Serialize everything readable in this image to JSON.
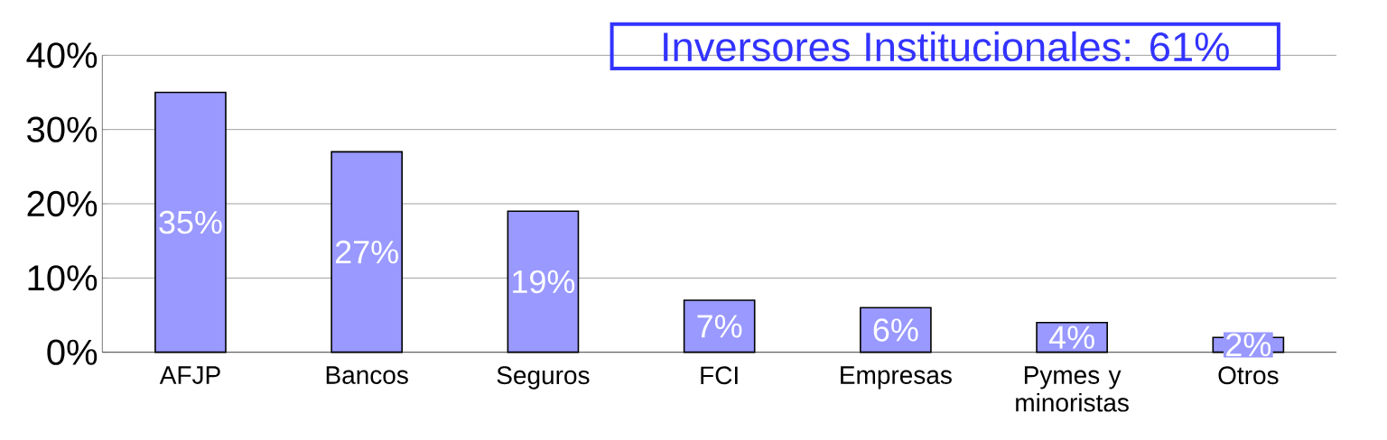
{
  "chart_data": {
    "type": "bar",
    "title": "Inversores Institucionales: 61%",
    "categories": [
      "AFJP",
      "Bancos",
      "Seguros",
      "FCI",
      "Empresas",
      "Pymes y minoristas",
      "Otros"
    ],
    "values": [
      35,
      27,
      19,
      7,
      6,
      4,
      2
    ],
    "value_labels": [
      "35%",
      "27%",
      "19%",
      "7%",
      "6%",
      "4%",
      "2%"
    ],
    "color": "#9999ff",
    "ylim": [
      0,
      40
    ],
    "yticks": [
      {
        "value": 0,
        "label": "0%"
      },
      {
        "value": 10,
        "label": "10%"
      },
      {
        "value": 20,
        "label": "20%"
      },
      {
        "value": 30,
        "label": "30%"
      },
      {
        "value": 40,
        "label": "40%"
      }
    ],
    "grid": "y"
  }
}
